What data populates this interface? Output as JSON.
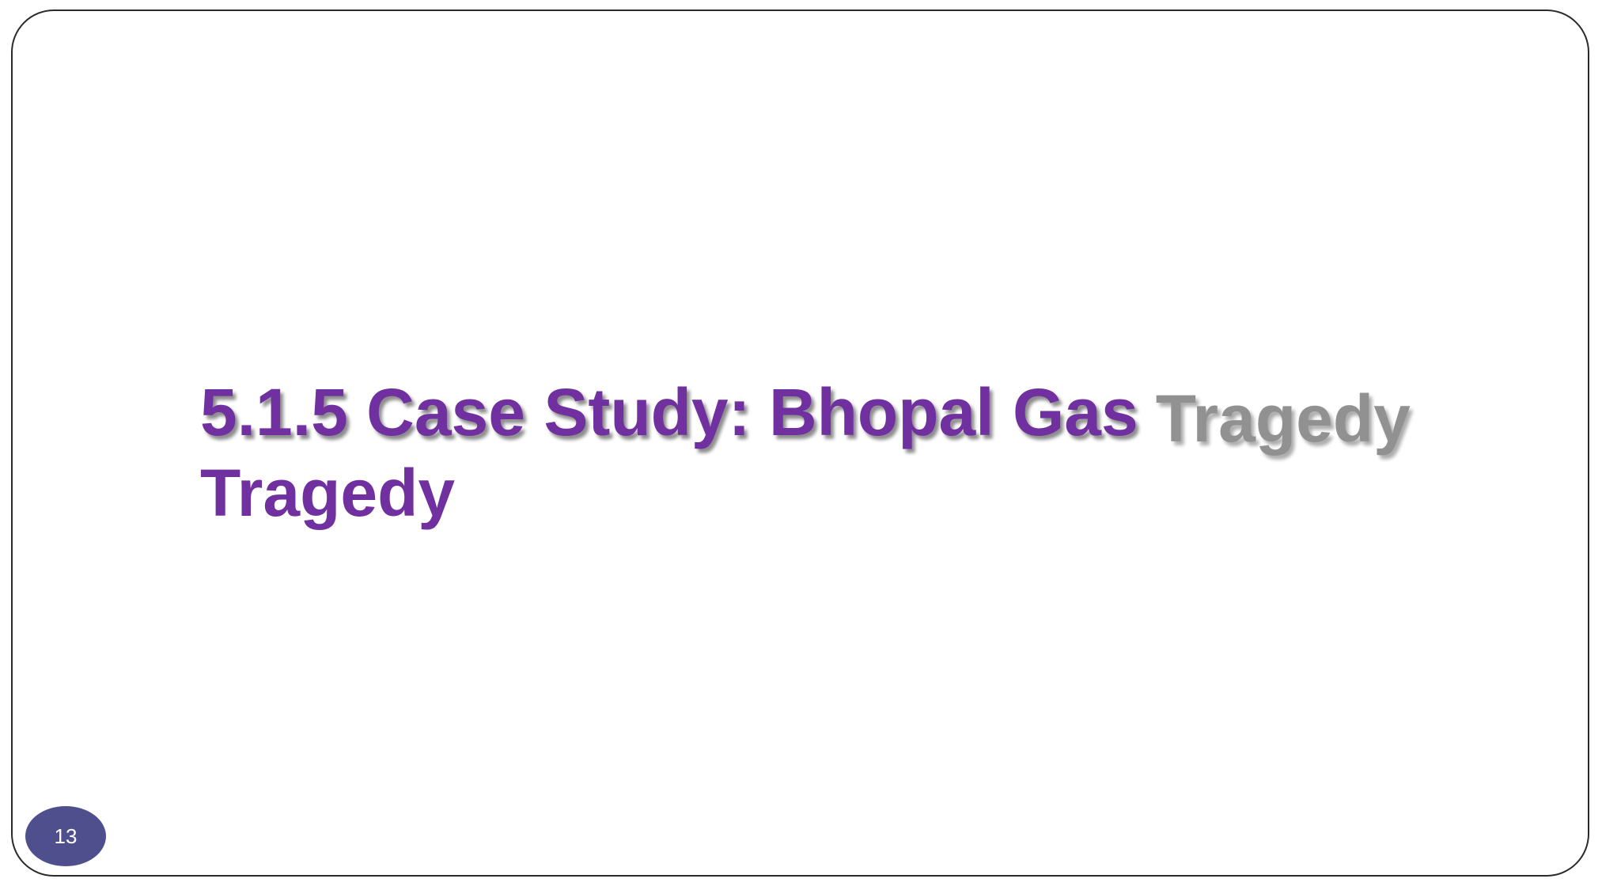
{
  "slide": {
    "title_line1_main": "5.1.5 Case Study: Bhopal Gas",
    "title_line1_ghost": "Tragedy",
    "title_line2": "Tragedy",
    "page_number": "13"
  },
  "colors": {
    "title": "#7030a0",
    "ghost_text": "#8c8c8c",
    "badge": "#4f4f8e"
  }
}
